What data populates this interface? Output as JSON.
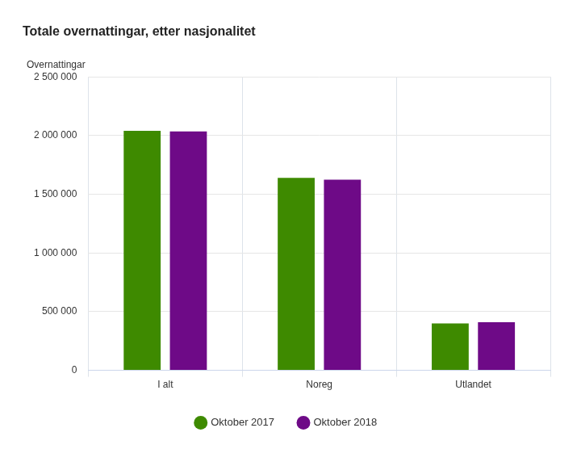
{
  "chart_data": {
    "type": "bar",
    "title": "Totale overnattingar, etter nasjonalitet",
    "ylabel": "Overnattingar",
    "categories": [
      "I alt",
      "Noreg",
      "Utlandet"
    ],
    "series": [
      {
        "name": "Oktober 2017",
        "color": "#3e8a00",
        "values": [
          2040000,
          1640000,
          400000
        ]
      },
      {
        "name": "Oktober 2018",
        "color": "#6e0a87",
        "values": [
          2035000,
          1625000,
          410000
        ]
      }
    ],
    "ylim": [
      0,
      2500000
    ],
    "yticks": [
      {
        "value": 0,
        "label": "0"
      },
      {
        "value": 500000,
        "label": "500 000"
      },
      {
        "value": 1000000,
        "label": "1 000 000"
      },
      {
        "value": 1500000,
        "label": "1 500 000"
      },
      {
        "value": 2000000,
        "label": "2 000 000"
      },
      {
        "value": 2500000,
        "label": "2 500 000"
      }
    ],
    "grid": true,
    "legend": "bottom"
  }
}
